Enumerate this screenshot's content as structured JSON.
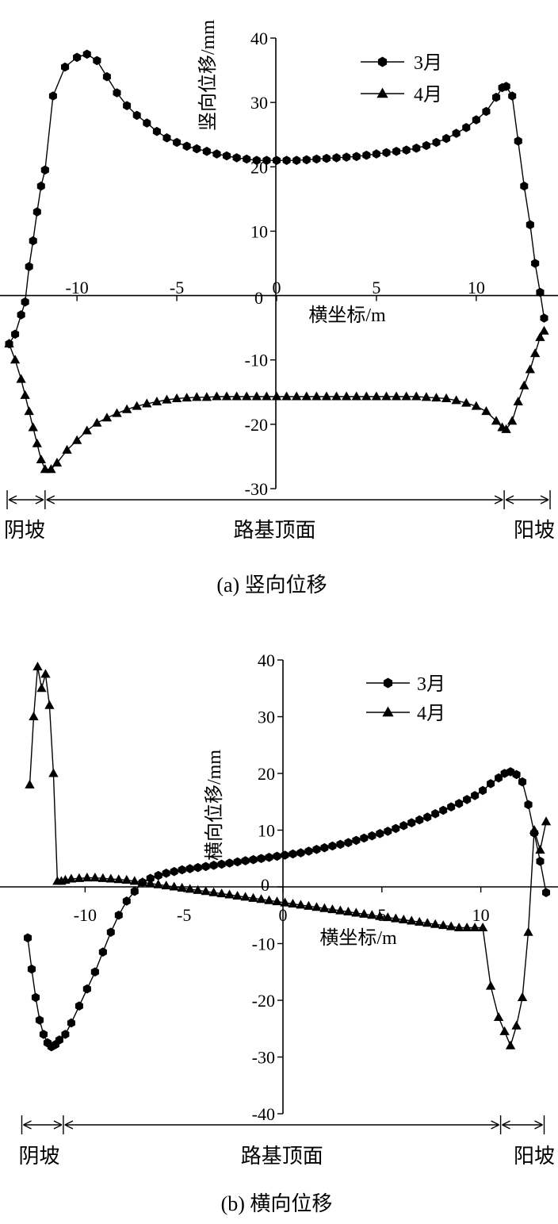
{
  "chart_data": [
    {
      "type": "line",
      "caption": "(a) 竖向位移",
      "xlabel": "横坐标/m",
      "ylabel": "竖向位移/mm",
      "xlim": [
        -13.5,
        13.5
      ],
      "ylim": [
        -30,
        40
      ],
      "xticks": [
        -10,
        -5,
        0,
        5,
        10
      ],
      "yticks": [
        -30,
        -20,
        -10,
        0,
        10,
        20,
        30,
        40
      ],
      "legend_position": "top-right",
      "grid": false,
      "regions": [
        {
          "label": "阴坡",
          "from": -13.5,
          "to": -11.6
        },
        {
          "label": "路基顶面",
          "from": -11.6,
          "to": 11.4
        },
        {
          "label": "阳坡",
          "from": 11.4,
          "to": 13.7
        }
      ],
      "series": [
        {
          "name": "3月",
          "marker": "hexagon",
          "x": [
            -13.4,
            -13.1,
            -12.8,
            -12.6,
            -12.4,
            -12.2,
            -12.0,
            -11.8,
            -11.6,
            -11.2,
            -10.6,
            -10.0,
            -9.5,
            -9.0,
            -8.5,
            -8.0,
            -7.5,
            -7.0,
            -6.5,
            -6.0,
            -5.5,
            -5.0,
            -4.5,
            -4.0,
            -3.5,
            -3.0,
            -2.5,
            -2.0,
            -1.5,
            -1.0,
            -0.5,
            0.0,
            0.5,
            1.0,
            1.5,
            2.0,
            2.5,
            3.0,
            3.5,
            4.0,
            4.5,
            5.0,
            5.5,
            6.0,
            6.5,
            7.0,
            7.5,
            8.0,
            8.5,
            9.0,
            9.5,
            10.0,
            10.5,
            11.0,
            11.3,
            11.5,
            11.8,
            12.1,
            12.4,
            12.7,
            12.95,
            13.2,
            13.4
          ],
          "y": [
            -7.5,
            -6.0,
            -3.0,
            -1.0,
            4.5,
            8.5,
            13.0,
            17.0,
            19.5,
            31.0,
            35.5,
            37.0,
            37.5,
            36.5,
            34.0,
            31.5,
            29.5,
            28.0,
            26.8,
            25.5,
            24.5,
            23.8,
            23.2,
            22.8,
            22.4,
            22.0,
            21.7,
            21.4,
            21.2,
            21.0,
            21.0,
            21.0,
            21.0,
            21.0,
            21.1,
            21.2,
            21.3,
            21.4,
            21.5,
            21.6,
            21.8,
            22.0,
            22.2,
            22.4,
            22.6,
            22.9,
            23.3,
            23.8,
            24.4,
            25.2,
            26.1,
            27.3,
            28.6,
            30.8,
            32.3,
            32.5,
            31.0,
            24.0,
            17.0,
            11.0,
            5.0,
            0.5,
            -3.5
          ]
        },
        {
          "name": "4月",
          "marker": "triangle",
          "x": [
            -13.4,
            -13.1,
            -12.8,
            -12.6,
            -12.4,
            -12.2,
            -12.0,
            -11.8,
            -11.6,
            -11.3,
            -11.0,
            -10.5,
            -10.0,
            -9.5,
            -9.0,
            -8.5,
            -8.0,
            -7.5,
            -7.0,
            -6.5,
            -6.0,
            -5.5,
            -5.0,
            -4.5,
            -4.0,
            -3.5,
            -3.0,
            -2.5,
            -2.0,
            -1.5,
            -1.0,
            -0.5,
            0.0,
            0.5,
            1.0,
            1.5,
            2.0,
            2.5,
            3.0,
            3.5,
            4.0,
            4.5,
            5.0,
            5.5,
            6.0,
            6.5,
            7.0,
            7.5,
            8.0,
            8.5,
            9.0,
            9.5,
            10.0,
            10.5,
            11.0,
            11.3,
            11.5,
            11.8,
            12.1,
            12.4,
            12.7,
            12.95,
            13.2,
            13.4
          ],
          "y": [
            -7.5,
            -10.0,
            -13.0,
            -15.5,
            -18.0,
            -20.5,
            -23.0,
            -25.5,
            -27.0,
            -27.0,
            -26.0,
            -24.0,
            -22.5,
            -21.0,
            -19.8,
            -19.0,
            -18.3,
            -17.7,
            -17.2,
            -16.8,
            -16.5,
            -16.2,
            -16.0,
            -15.9,
            -15.8,
            -15.8,
            -15.7,
            -15.7,
            -15.7,
            -15.7,
            -15.7,
            -15.7,
            -15.7,
            -15.7,
            -15.7,
            -15.7,
            -15.7,
            -15.7,
            -15.7,
            -15.7,
            -15.7,
            -15.7,
            -15.7,
            -15.7,
            -15.7,
            -15.7,
            -15.7,
            -15.8,
            -15.9,
            -16.0,
            -16.3,
            -16.7,
            -17.2,
            -18.0,
            -19.5,
            -20.5,
            -20.8,
            -19.5,
            -16.5,
            -14.0,
            -11.5,
            -9.0,
            -6.5,
            -5.5
          ]
        }
      ]
    },
    {
      "type": "line",
      "caption": "(b) 横向位移",
      "xlabel": "横坐标/m",
      "ylabel": "横向位移/mm",
      "xlim": [
        -13.5,
        13.5
      ],
      "ylim": [
        -40,
        40
      ],
      "xticks": [
        -10,
        -5,
        0,
        5,
        10
      ],
      "yticks": [
        -40,
        -30,
        -20,
        -10,
        0,
        10,
        20,
        30,
        40
      ],
      "legend_position": "top-right",
      "grid": false,
      "regions": [
        {
          "label": "阴坡",
          "from": -13.2,
          "to": -11.1
        },
        {
          "label": "路基顶面",
          "from": -11.1,
          "to": 11.0
        },
        {
          "label": "阳坡",
          "from": 11.0,
          "to": 13.2
        }
      ],
      "series": [
        {
          "name": "3月",
          "marker": "hexagon",
          "x": [
            -12.9,
            -12.7,
            -12.5,
            -12.3,
            -12.1,
            -11.9,
            -11.7,
            -11.5,
            -11.3,
            -11.0,
            -10.7,
            -10.3,
            -9.9,
            -9.5,
            -9.1,
            -8.7,
            -8.3,
            -7.9,
            -7.5,
            -7.1,
            -6.7,
            -6.3,
            -5.9,
            -5.5,
            -5.1,
            -4.7,
            -4.3,
            -3.9,
            -3.5,
            -3.1,
            -2.7,
            -2.3,
            -1.9,
            -1.5,
            -1.1,
            -0.7,
            -0.3,
            0.1,
            0.5,
            0.9,
            1.3,
            1.7,
            2.1,
            2.5,
            2.9,
            3.3,
            3.7,
            4.1,
            4.5,
            4.9,
            5.3,
            5.7,
            6.1,
            6.5,
            6.9,
            7.3,
            7.7,
            8.1,
            8.5,
            8.9,
            9.3,
            9.7,
            10.1,
            10.5,
            10.9,
            11.2,
            11.5,
            11.8,
            12.1,
            12.4,
            12.7,
            13.0,
            13.3
          ],
          "y": [
            -9.0,
            -14.5,
            -19.5,
            -23.5,
            -26.0,
            -27.5,
            -28.2,
            -27.8,
            -27.0,
            -26.0,
            -24.0,
            -21.0,
            -18.0,
            -15.0,
            -11.5,
            -8.0,
            -5.0,
            -2.5,
            -0.8,
            0.8,
            1.5,
            2.0,
            2.4,
            2.7,
            3.0,
            3.2,
            3.4,
            3.6,
            3.8,
            4.0,
            4.2,
            4.4,
            4.6,
            4.8,
            5.0,
            5.2,
            5.4,
            5.6,
            5.8,
            6.0,
            6.3,
            6.6,
            6.9,
            7.2,
            7.5,
            7.8,
            8.2,
            8.6,
            9.0,
            9.4,
            9.8,
            10.3,
            10.8,
            11.3,
            11.8,
            12.3,
            12.9,
            13.5,
            14.1,
            14.7,
            15.4,
            16.1,
            17.0,
            18.2,
            19.2,
            20.0,
            20.3,
            19.8,
            18.5,
            14.5,
            9.5,
            4.5,
            -1.0
          ]
        },
        {
          "name": "4月",
          "marker": "triangle",
          "x": [
            -12.8,
            -12.6,
            -12.4,
            -12.2,
            -12.0,
            -11.8,
            -11.6,
            -11.4,
            -11.2,
            -11.0,
            -10.7,
            -10.3,
            -9.9,
            -9.5,
            -9.1,
            -8.7,
            -8.3,
            -7.9,
            -7.5,
            -7.1,
            -6.7,
            -6.3,
            -5.9,
            -5.5,
            -5.1,
            -4.7,
            -4.3,
            -3.9,
            -3.5,
            -3.1,
            -2.7,
            -2.3,
            -1.9,
            -1.5,
            -1.1,
            -0.7,
            -0.3,
            0.1,
            0.5,
            0.9,
            1.3,
            1.7,
            2.1,
            2.5,
            2.9,
            3.3,
            3.7,
            4.1,
            4.5,
            4.9,
            5.3,
            5.7,
            6.1,
            6.5,
            6.9,
            7.3,
            7.7,
            8.1,
            8.5,
            8.9,
            9.3,
            9.7,
            10.1,
            10.5,
            10.9,
            11.2,
            11.5,
            11.8,
            12.1,
            12.4,
            12.7,
            13.0,
            13.3
          ],
          "y": [
            18.0,
            30.0,
            38.8,
            35.0,
            37.5,
            32.0,
            20.0,
            1.0,
            1.0,
            1.2,
            1.4,
            1.5,
            1.6,
            1.6,
            1.5,
            1.4,
            1.3,
            1.2,
            1.0,
            0.8,
            0.6,
            0.4,
            0.2,
            0.0,
            -0.2,
            -0.4,
            -0.6,
            -0.8,
            -1.0,
            -1.2,
            -1.4,
            -1.6,
            -1.8,
            -2.0,
            -2.2,
            -2.4,
            -2.6,
            -2.8,
            -3.0,
            -3.2,
            -3.4,
            -3.6,
            -3.8,
            -4.0,
            -4.2,
            -4.4,
            -4.6,
            -4.8,
            -5.0,
            -5.2,
            -5.4,
            -5.6,
            -5.8,
            -6.0,
            -6.2,
            -6.4,
            -6.6,
            -6.8,
            -7.0,
            -7.2,
            -7.2,
            -7.2,
            -7.2,
            -17.5,
            -23.0,
            -25.5,
            -28.0,
            -24.5,
            -19.5,
            -8.0,
            10.0,
            6.5,
            11.5
          ]
        }
      ]
    }
  ]
}
